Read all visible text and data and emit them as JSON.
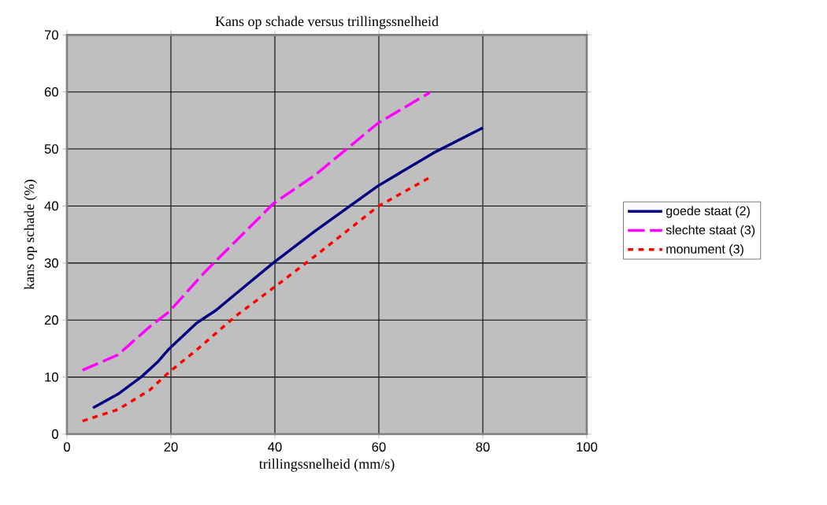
{
  "chart_data": {
    "type": "line",
    "title": "Kans op schade versus trillingssnelheid",
    "xlabel": "trillingssnelheid (mm/s)",
    "ylabel": "kans op schade (%)",
    "xlim": [
      0,
      100
    ],
    "xticks": [
      0,
      20,
      40,
      60,
      80,
      100
    ],
    "ylim": [
      0,
      70
    ],
    "yticks": [
      0,
      10,
      20,
      30,
      40,
      50,
      60,
      70
    ],
    "grid": true,
    "legend": "right",
    "series": [
      {
        "name": "goede staat (2)",
        "color": "#000080",
        "line_style": "solid",
        "x": [
          5,
          9.8,
          14.4,
          17.4,
          19.7,
          25,
          28.8,
          32.6,
          39.8,
          47.7,
          59.8,
          70.5,
          80
        ],
        "values": [
          4.6,
          7.0,
          10.1,
          12.6,
          15.0,
          19.5,
          21.8,
          24.7,
          30.1,
          35.6,
          43.5,
          49.3,
          53.7
        ]
      },
      {
        "name": "slechte staat (3)",
        "color": "#ff00ff",
        "line_style": "dashed",
        "x": [
          3,
          9.8,
          15.9,
          19.7,
          26.5,
          39.8,
          47.7,
          59.8,
          69.8
        ],
        "values": [
          11.2,
          13.9,
          18.8,
          21.5,
          28.4,
          40.5,
          45.4,
          54.5,
          59.9
        ]
      },
      {
        "name": "monument (3)",
        "color": "#ff0000",
        "line_style": "dotted",
        "x": [
          3,
          9.8,
          15.9,
          19.7,
          25,
          32.6,
          39.8,
          47.7,
          59.8,
          69.8
        ],
        "values": [
          2.3,
          4.3,
          7.7,
          10.9,
          14.8,
          20.8,
          25.7,
          31.2,
          39.9,
          45.0
        ]
      }
    ]
  }
}
